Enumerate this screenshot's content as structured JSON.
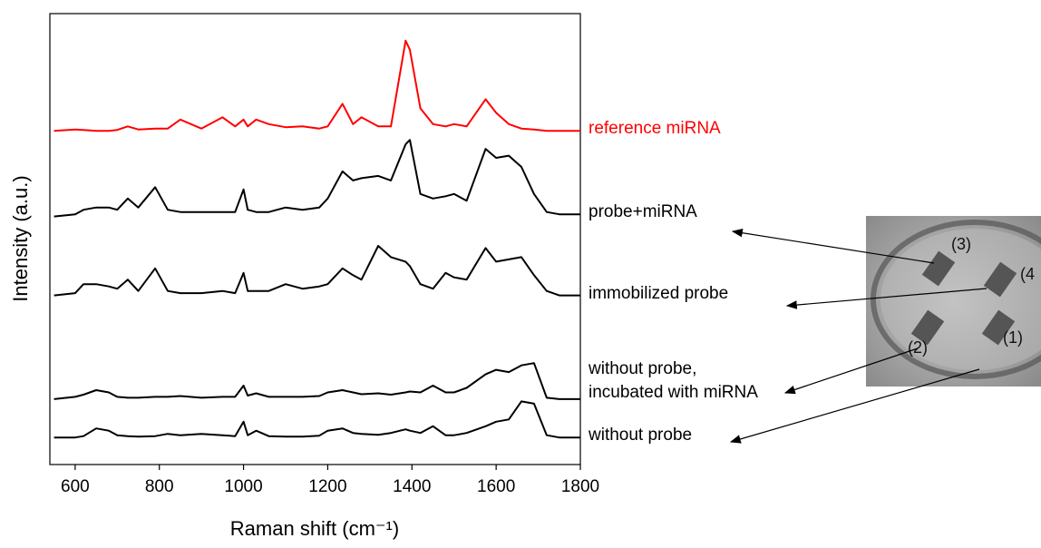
{
  "chart_data": {
    "type": "line",
    "xlabel": "Raman shift (cm⁻¹)",
    "ylabel": "Intensity (a.u.)",
    "x": [
      550,
      600,
      620,
      650,
      680,
      700,
      725,
      750,
      790,
      820,
      850,
      900,
      950,
      980,
      1000,
      1010,
      1030,
      1060,
      1100,
      1140,
      1180,
      1200,
      1235,
      1260,
      1280,
      1320,
      1350,
      1385,
      1395,
      1420,
      1450,
      1480,
      1500,
      1530,
      1575,
      1600,
      1630,
      1660,
      1690,
      1720,
      1750,
      1800
    ],
    "xlim": [
      540,
      1800
    ],
    "xticks": [
      600,
      800,
      1000,
      1200,
      1400,
      1600,
      1800
    ],
    "ylim": [
      0,
      100
    ],
    "series": [
      {
        "name": "reference miRNA",
        "color": "#ff0000",
        "values": [
          74,
          74.3,
          74.2,
          74,
          74,
          74.2,
          75,
          74.3,
          74.5,
          74.5,
          76.5,
          74.5,
          77,
          75,
          76.5,
          75,
          76.5,
          75.5,
          74.8,
          75,
          74.5,
          75,
          80,
          75.5,
          77,
          75,
          75,
          94,
          92,
          79,
          75.5,
          75,
          75.5,
          75,
          81,
          78,
          75.5,
          74.5,
          74.3,
          74,
          74,
          74
        ]
      },
      {
        "name": "probe+miRNA",
        "color": "#000000",
        "values": [
          55,
          55.5,
          56.5,
          57,
          57,
          56.5,
          59,
          57,
          61.5,
          56.5,
          56,
          56,
          56,
          56,
          61,
          56.5,
          56,
          56,
          57,
          56.5,
          57,
          59,
          65,
          63,
          63.5,
          64,
          63,
          71,
          72,
          60,
          59,
          59.5,
          60,
          58.5,
          70,
          68,
          68.5,
          66,
          60,
          56,
          55.5,
          55.5
        ]
      },
      {
        "name": "immobilized probe",
        "color": "#000000",
        "values": [
          37.5,
          38,
          40,
          40,
          39.5,
          39,
          41,
          38.5,
          43.5,
          38.5,
          38,
          38,
          38.5,
          38,
          42.5,
          38.5,
          38.5,
          38.5,
          40,
          39,
          39.5,
          40,
          43.5,
          42,
          41,
          48.5,
          46,
          45,
          44,
          40,
          39,
          42.5,
          41.5,
          41,
          48,
          45,
          45.5,
          46,
          42,
          38.5,
          37.5,
          37.5
        ]
      },
      {
        "name": "without probe,\nincubated with miRNA",
        "color": "#000000",
        "values": [
          14.5,
          15,
          15.5,
          16.5,
          16,
          15,
          14.8,
          14.8,
          15,
          15,
          15.2,
          14.8,
          15,
          15,
          17.5,
          15.3,
          15.8,
          15,
          15,
          15,
          15.2,
          16,
          16.5,
          16,
          15.6,
          15.8,
          15.5,
          16,
          16.2,
          16,
          17.5,
          16,
          16,
          17,
          20,
          21,
          20.5,
          22,
          22.5,
          14.8,
          14.5,
          14.5
        ]
      },
      {
        "name": "without probe",
        "color": "#000000",
        "values": [
          6,
          6,
          6.3,
          8,
          7.5,
          6.5,
          6.3,
          6.2,
          6.3,
          6.8,
          6.5,
          6.8,
          6.5,
          6.3,
          9.5,
          6.5,
          7.5,
          6.3,
          6.2,
          6.2,
          6.4,
          7.5,
          8,
          7,
          6.8,
          6.6,
          7,
          7.8,
          7.5,
          7,
          8.5,
          6.5,
          6.5,
          7,
          8.5,
          9.5,
          10,
          14,
          13.5,
          6.5,
          6,
          6
        ]
      }
    ]
  },
  "inset": {
    "labels": [
      "(3)",
      "(4",
      "(2)",
      "(1)"
    ]
  }
}
